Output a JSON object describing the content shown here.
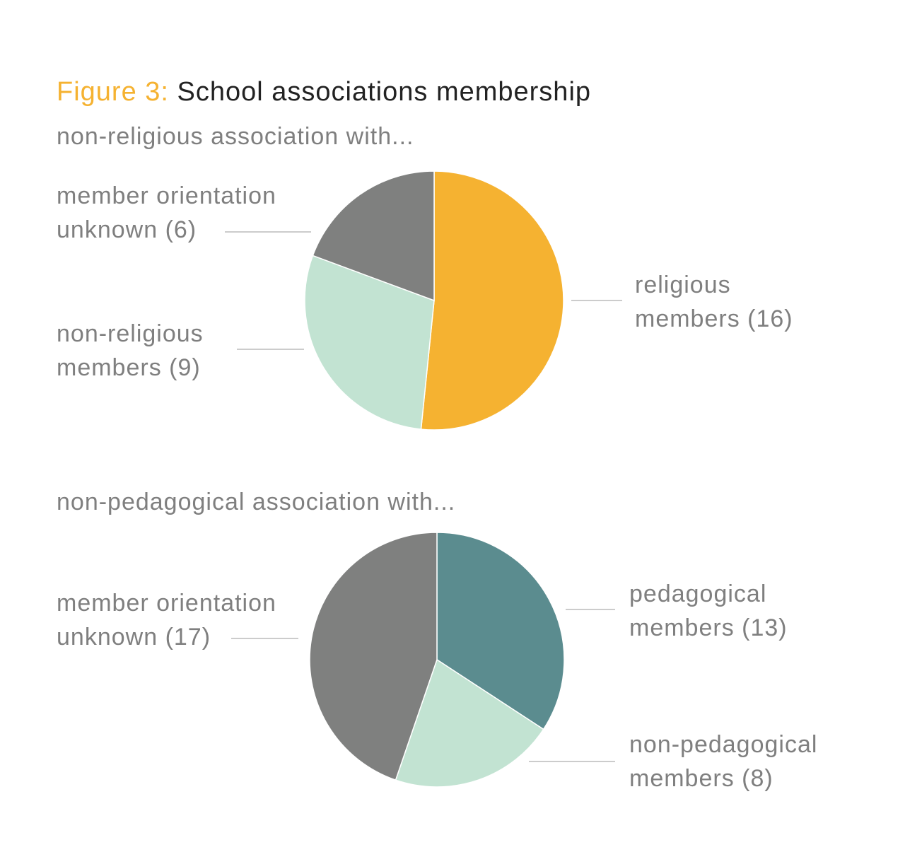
{
  "figure": "Figure 3:",
  "title": "School associations membership",
  "chart_data": [
    {
      "type": "pie",
      "subtitle": "non-religious association with...",
      "categories": [
        "religious members",
        "non-religious members",
        "member orientation unknown"
      ],
      "values": [
        16,
        9,
        6
      ],
      "value_labels": [
        "(16)",
        "(9)",
        "(6)"
      ],
      "colors": [
        "#f5b231",
        "#c2e3d2",
        "#7f807f"
      ]
    },
    {
      "type": "pie",
      "subtitle": "non-pedagogical association with...",
      "categories": [
        "pedagogical members",
        "non-pedagogical members",
        "member orientation unknown"
      ],
      "values": [
        13,
        8,
        17
      ],
      "value_labels": [
        "(13)",
        "(8)",
        "(17)"
      ],
      "colors": [
        "#5b8c8f",
        "#c2e3d2",
        "#7f807f"
      ]
    }
  ]
}
